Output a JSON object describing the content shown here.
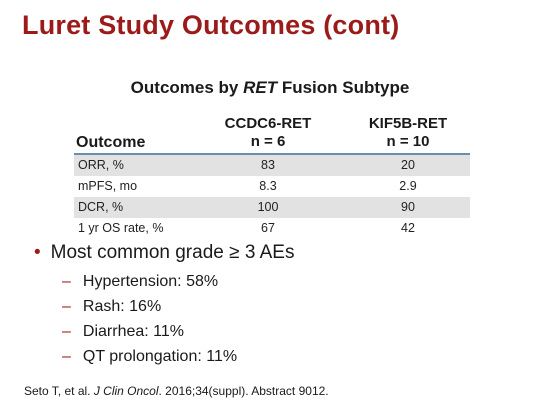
{
  "title": "Luret Study Outcomes (cont)",
  "table": {
    "heading_prefix": "Outcomes by ",
    "heading_italic": "RET",
    "heading_suffix": " Fusion Subtype",
    "col_outcome": "Outcome",
    "col1_line1": "CCDC6-RET",
    "col1_line2": "n = 6",
    "col2_line1": "KIF5B-RET",
    "col2_line2": "n = 10",
    "rows": [
      {
        "label": "ORR, %",
        "v1": "83",
        "v2": "20"
      },
      {
        "label": "mPFS, mo",
        "v1": "8.3",
        "v2": "2.9"
      },
      {
        "label": "DCR, %",
        "v1": "100",
        "v2": "90"
      },
      {
        "label": "1 yr OS rate, %",
        "v1": "67",
        "v2": "42"
      }
    ]
  },
  "bullets": {
    "main": "Most common grade ≥ 3 AEs",
    "subs": [
      "Hypertension: 58%",
      "Rash: 16%",
      "Diarrhea: 11%",
      "QT prolongation: 11%"
    ]
  },
  "citation": {
    "prefix": "Seto T, et al. ",
    "journal": "J Clin Oncol",
    "suffix": ". 2016;34(suppl). Abstract 9012."
  },
  "colors": {
    "accent": "#9b1b1b",
    "rule": "#6a8db0",
    "shade": "#e2e2e2"
  }
}
